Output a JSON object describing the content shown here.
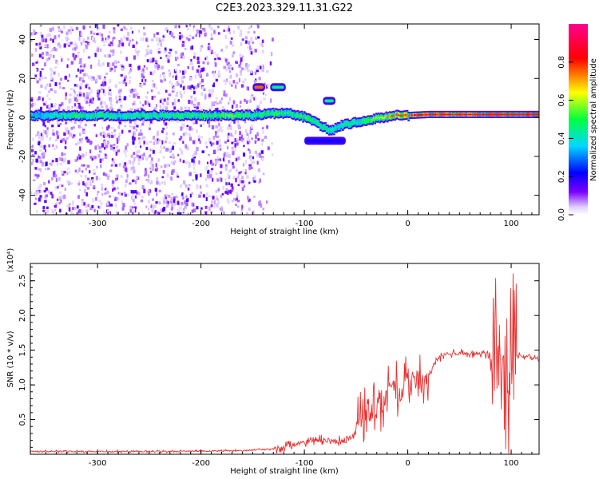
{
  "title": "C2E3.2023.329.11.31.G22",
  "chart_data": [
    {
      "type": "heatmap",
      "xlabel": "Height of straight line (km)",
      "ylabel": "Frequency (Hz)",
      "xlim": [
        -365,
        127
      ],
      "ylim": [
        -50,
        48
      ],
      "x_ticks": [
        "-300",
        "-200",
        "-100",
        "0",
        "100"
      ],
      "y_ticks": [
        "-40",
        "-20",
        "0",
        "20",
        "40"
      ],
      "colorbar": {
        "label": "Normalized spectral amplitude",
        "range": [
          0,
          1
        ],
        "ticks": [
          "0.0",
          "0.2",
          "0.4",
          "0.6",
          "0.8"
        ],
        "colormap": [
          "#ffffff",
          "#7a00ff",
          "#0000ff",
          "#00d8ff",
          "#00ff40",
          "#ffff00",
          "#ff0000",
          "#ff0090"
        ]
      },
      "ridge": {
        "x": [
          -360,
          -320,
          -280,
          -240,
          -200,
          -170,
          -150,
          -130,
          -115,
          -100,
          -85,
          -75,
          -65,
          -55,
          -45,
          -35,
          -25,
          -15,
          0,
          20,
          50,
          90,
          127
        ],
        "frequency": [
          1,
          1,
          1,
          1,
          1,
          1,
          1,
          2,
          2,
          0,
          -4,
          -7,
          -4,
          -3,
          -2,
          -1,
          0,
          1,
          1,
          1.5,
          1.5,
          1.5,
          1.5
        ],
        "amplitude": [
          0.35,
          0.5,
          0.45,
          0.5,
          0.5,
          0.6,
          0.5,
          0.55,
          0.5,
          0.55,
          0.5,
          0.45,
          0.45,
          0.45,
          0.5,
          0.6,
          0.7,
          0.8,
          0.85,
          0.9,
          0.9,
          0.95,
          0.95
        ]
      },
      "secondary_features": [
        {
          "x": [
            -150,
            -138
          ],
          "frequency": 15.5,
          "amplitude": 0.75
        },
        {
          "x": [
            -133,
            -118
          ],
          "frequency": 15.5,
          "amplitude": 0.45
        },
        {
          "x": [
            -82,
            -70
          ],
          "frequency": 8.5,
          "amplitude": 0.45
        },
        {
          "x": [
            -100,
            -60
          ],
          "frequency": -12,
          "amplitude": 0.2
        }
      ]
    },
    {
      "type": "line",
      "xlabel": "Height of straight line (km)",
      "ylabel": "SNR (10 * v/v)",
      "multiplier": "(x10⁴)",
      "xlim": [
        -365,
        127
      ],
      "ylim": [
        0,
        2.75
      ],
      "x_ticks": [
        "-300",
        "-200",
        "-100",
        "0",
        "100"
      ],
      "y_ticks": [
        "0.5",
        "1.0",
        "1.5",
        "2.0",
        "2.5"
      ],
      "color": "#e83030",
      "series": [
        {
          "x": [
            -365,
            -300,
            -250,
            -200,
            -170,
            -150,
            -130,
            -115,
            -100,
            -90,
            -80,
            -70,
            -60,
            -50,
            -45,
            -40,
            -35,
            -30,
            -25,
            -20,
            -15,
            -10,
            -5,
            0,
            5,
            10,
            15,
            20,
            25,
            30,
            35,
            40,
            50,
            60,
            70,
            80,
            85,
            88,
            90,
            92,
            94,
            96,
            98,
            100,
            105,
            110,
            115,
            120,
            127
          ],
          "values": [
            0.04,
            0.04,
            0.04,
            0.045,
            0.05,
            0.06,
            0.08,
            0.12,
            0.17,
            0.2,
            0.21,
            0.18,
            0.2,
            0.3,
            0.55,
            0.6,
            0.68,
            0.72,
            0.78,
            0.82,
            0.86,
            0.92,
            0.95,
            1.05,
            1.05,
            1.0,
            1.05,
            1.15,
            1.28,
            1.38,
            1.43,
            1.45,
            1.46,
            1.45,
            1.45,
            1.44,
            1.43,
            1.4,
            1.45,
            1.3,
            1.4,
            1.35,
            1.2,
            1.4,
            1.42,
            1.42,
            1.4,
            1.4,
            1.38
          ]
        }
      ]
    }
  ]
}
